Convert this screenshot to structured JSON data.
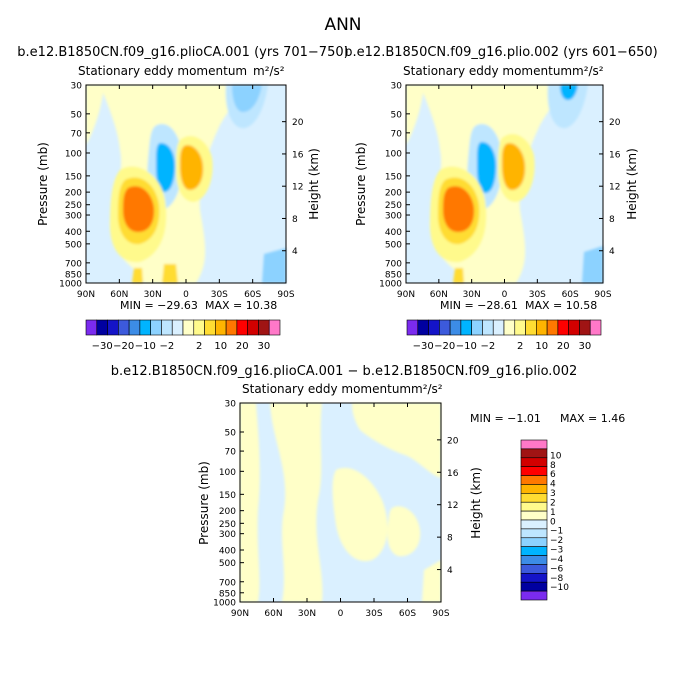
{
  "figure": {
    "title": "ANN"
  },
  "colors": {
    "contour_levels_top": [
      "#7b2bef",
      "#0000a0",
      "#1414c8",
      "#3c5adc",
      "#3c8ce6",
      "#00b4ff",
      "#8cd2ff",
      "#bee6ff",
      "#daf0ff",
      "#ffffc8",
      "#fffa8c",
      "#ffdc32",
      "#ffb400",
      "#ff7800",
      "#ff0000",
      "#d20000",
      "#a01414",
      "#ff78c8"
    ],
    "contour_levels_diff": [
      "#7b2bef",
      "#0000a0",
      "#1414c8",
      "#3c5adc",
      "#3c8ce6",
      "#00b4ff",
      "#8cd2ff",
      "#bee6ff",
      "#daf0ff",
      "#ffffc8",
      "#fffa8c",
      "#ffdc32",
      "#ffb400",
      "#ff7800",
      "#ff0000",
      "#d20000",
      "#a01414",
      "#ff78c8"
    ]
  },
  "chart_data": [
    {
      "type": "heatmap",
      "panel": "left",
      "title": "b.e12.B1850CN.f09_g16.plioCA.001 (yrs 701−750)",
      "subtitle": "Stationary eddy momentum",
      "units": "m²/s²",
      "xlabel": "",
      "ylabel": "Pressure (mb)",
      "y2label": "Height (km)",
      "x_ticks": [
        "90N",
        "60N",
        "30N",
        "0",
        "30S",
        "60S",
        "90S"
      ],
      "y_ticks": [
        "30",
        "50",
        "70",
        "100",
        "150",
        "200",
        "250",
        "300",
        "400",
        "500",
        "700",
        "850",
        "1000"
      ],
      "y2_ticks": [
        "20",
        "16",
        "12",
        "8",
        "4"
      ],
      "min_label": "MIN = −29.63",
      "max_label": "MAX =  10.38",
      "min": -29.63,
      "max": 10.38,
      "colorbar_labels": [
        "−30",
        "−20",
        "−10",
        "−2",
        "2",
        "10",
        "20",
        "30"
      ]
    },
    {
      "type": "heatmap",
      "panel": "right",
      "title": "b.e12.B1850CN.f09_g16.plio.002 (yrs 601−650)",
      "subtitle": "Stationary eddy momentum",
      "units": "m²/s²",
      "xlabel": "",
      "ylabel": "Pressure (mb)",
      "y2label": "Height (km)",
      "x_ticks": [
        "90N",
        "60N",
        "30N",
        "0",
        "30S",
        "60S",
        "90S"
      ],
      "y_ticks": [
        "30",
        "50",
        "70",
        "100",
        "150",
        "200",
        "250",
        "300",
        "400",
        "500",
        "700",
        "850",
        "1000"
      ],
      "y2_ticks": [
        "20",
        "16",
        "12",
        "8",
        "4"
      ],
      "min_label": "MIN = −28.61",
      "max_label": "MAX =  10.58",
      "min": -28.61,
      "max": 10.58,
      "colorbar_labels": [
        "−30",
        "−20",
        "−10",
        "−2",
        "2",
        "10",
        "20",
        "30"
      ]
    },
    {
      "type": "heatmap",
      "panel": "difference",
      "title": "b.e12.B1850CN.f09_g16.plioCA.001 − b.e12.B1850CN.f09_g16.plio.002",
      "subtitle": "Stationary eddy momentum",
      "units": "m²/s²",
      "xlabel": "",
      "ylabel": "Pressure (mb)",
      "y2label": "Height (km)",
      "x_ticks": [
        "90N",
        "60N",
        "30N",
        "0",
        "30S",
        "60S",
        "90S"
      ],
      "y_ticks": [
        "30",
        "50",
        "70",
        "100",
        "150",
        "200",
        "250",
        "300",
        "400",
        "500",
        "700",
        "850",
        "1000"
      ],
      "y2_ticks": [
        "20",
        "16",
        "12",
        "8",
        "4"
      ],
      "min_label": "MIN =  −1.01",
      "max_label": "MAX =   1.46",
      "min": -1.01,
      "max": 1.46,
      "colorbar_labels": [
        "10",
        "8",
        "6",
        "4",
        "3",
        "2",
        "1",
        "0",
        "−1",
        "−2",
        "−3",
        "−4",
        "−6",
        "−8",
        "−10"
      ]
    }
  ]
}
